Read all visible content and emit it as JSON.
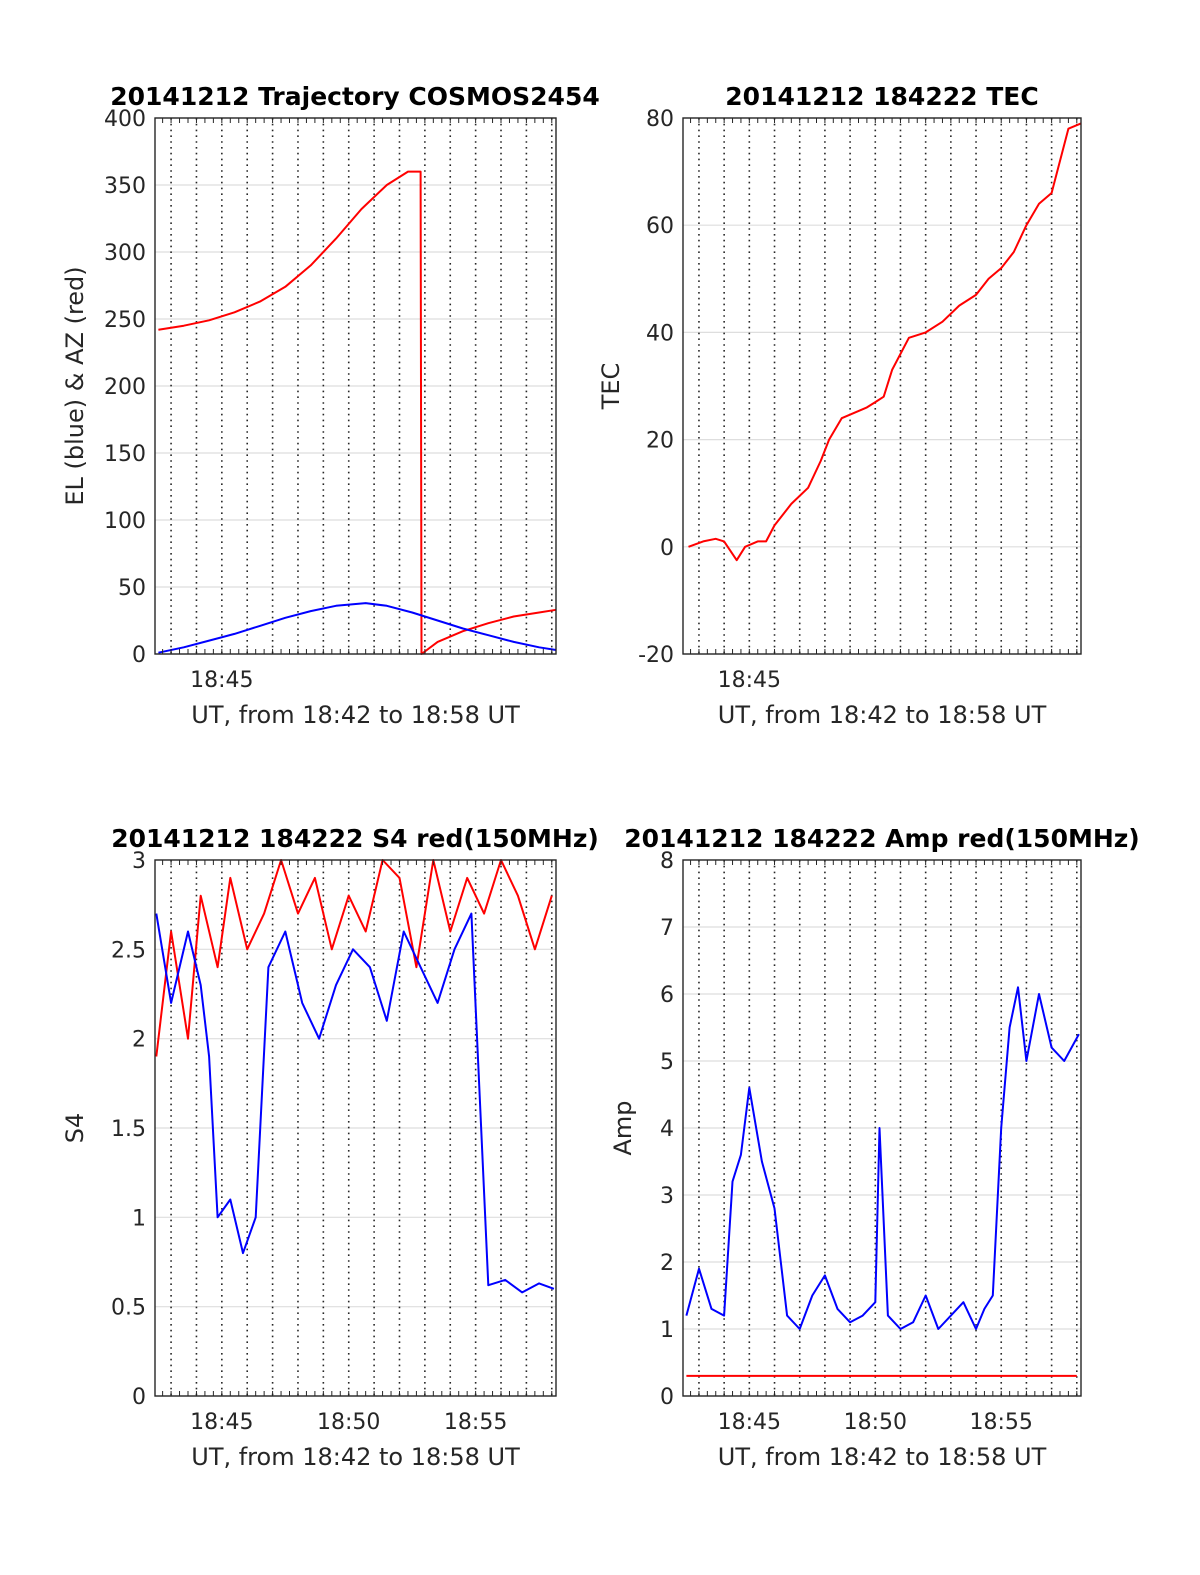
{
  "chart_data": [
    {
      "type": "line",
      "title": "20141212 Trajectory COSMOS2454",
      "xlabel": "UT, from 18:42 to 18:58 UT",
      "ylabel": "EL (blue) & AZ (red)",
      "xlim": [
        "18:42:22",
        "18:58:10"
      ],
      "ylim": [
        0,
        400
      ],
      "x_ticks": [
        "18:45"
      ],
      "y_ticks": [
        0,
        50,
        100,
        150,
        200,
        250,
        300,
        350,
        400
      ],
      "grid": "x minute lines dotted, y lines solid light",
      "series": [
        {
          "color": "#ff0000",
          "x": [
            "18:42:30",
            "18:43:30",
            "18:44:30",
            "18:45:30",
            "18:46:30",
            "18:47:30",
            "18:48:30",
            "18:49:30",
            "18:50:30",
            "18:51:30",
            "18:52:20",
            "18:52:50",
            "18:52:52",
            "18:53:30",
            "18:54:30",
            "18:55:30",
            "18:56:30",
            "18:57:30",
            "18:58:10"
          ],
          "values": [
            242,
            245,
            249,
            255,
            263,
            274,
            290,
            310,
            332,
            350,
            360,
            360,
            0,
            9,
            17,
            23,
            28,
            31,
            33
          ]
        },
        {
          "color": "#0000ff",
          "x": [
            "18:42:30",
            "18:43:30",
            "18:44:30",
            "18:45:30",
            "18:46:30",
            "18:47:30",
            "18:48:30",
            "18:49:30",
            "18:50:40",
            "18:51:30",
            "18:52:30",
            "18:53:30",
            "18:54:30",
            "18:55:30",
            "18:56:30",
            "18:57:30",
            "18:58:10"
          ],
          "values": [
            1,
            5,
            10,
            15,
            21,
            27,
            32,
            36,
            38,
            36,
            31,
            25,
            19,
            14,
            9,
            5,
            3
          ]
        }
      ]
    },
    {
      "type": "line",
      "title": "20141212 184222 TEC",
      "xlabel": "UT, from 18:42 to 18:58 UT",
      "ylabel": "TEC",
      "xlim": [
        "18:42:22",
        "18:58:10"
      ],
      "ylim": [
        -20,
        80
      ],
      "x_ticks": [
        "18:45"
      ],
      "y_ticks": [
        -20,
        0,
        20,
        40,
        60,
        80
      ],
      "grid": "x minute lines dotted, y lines solid light",
      "series": [
        {
          "color": "#ff0000",
          "x": [
            "18:42:35",
            "18:43:10",
            "18:43:40",
            "18:44:00",
            "18:44:30",
            "18:44:50",
            "18:45:20",
            "18:45:40",
            "18:46:00",
            "18:46:40",
            "18:47:20",
            "18:47:50",
            "18:48:10",
            "18:48:40",
            "18:49:10",
            "18:49:40",
            "18:50:00",
            "18:50:20",
            "18:50:40",
            "18:51:20",
            "18:52:00",
            "18:52:40",
            "18:53:20",
            "18:54:00",
            "18:54:30",
            "18:55:00",
            "18:55:30",
            "18:56:00",
            "18:56:30",
            "18:57:00",
            "18:57:20",
            "18:57:40",
            "18:58:10"
          ],
          "values": [
            0,
            1,
            1.5,
            1,
            -2.5,
            0,
            1,
            1,
            4,
            8,
            11,
            16,
            20,
            24,
            25,
            26,
            27,
            28,
            33,
            39,
            40,
            42,
            45,
            47,
            50,
            52,
            55,
            60,
            64,
            66,
            72,
            78,
            79
          ]
        }
      ]
    },
    {
      "type": "line",
      "title": "20141212 184222 S4 red(150MHz)",
      "xlabel": "UT, from 18:42 to 18:58 UT",
      "ylabel": "S4",
      "xlim": [
        "18:42:22",
        "18:58:10"
      ],
      "ylim": [
        0,
        3
      ],
      "x_ticks": [
        "18:45",
        "18:50",
        "18:55"
      ],
      "y_ticks": [
        0,
        0.5,
        1,
        1.5,
        2,
        2.5,
        3
      ],
      "grid": "x minute lines dotted, y lines solid light",
      "series": [
        {
          "color": "#ff0000",
          "x": [
            "18:42:25",
            "18:43:00",
            "18:43:40",
            "18:44:10",
            "18:44:50",
            "18:45:20",
            "18:46:00",
            "18:46:40",
            "18:47:20",
            "18:48:00",
            "18:48:40",
            "18:49:20",
            "18:50:00",
            "18:50:40",
            "18:51:20",
            "18:52:00",
            "18:52:40",
            "18:53:20",
            "18:54:00",
            "18:54:40",
            "18:55:20",
            "18:56:00",
            "18:56:40",
            "18:57:20",
            "18:58:00"
          ],
          "values": [
            1.9,
            2.6,
            2.0,
            2.8,
            2.4,
            2.9,
            2.5,
            2.7,
            3.0,
            2.7,
            2.9,
            2.5,
            2.8,
            2.6,
            3.0,
            2.9,
            2.4,
            3.0,
            2.6,
            2.9,
            2.7,
            3.0,
            2.8,
            2.5,
            2.8
          ]
        },
        {
          "color": "#0000ff",
          "x": [
            "18:42:25",
            "18:43:00",
            "18:43:40",
            "18:44:10",
            "18:44:30",
            "18:44:50",
            "18:45:20",
            "18:45:50",
            "18:46:20",
            "18:46:50",
            "18:47:30",
            "18:48:10",
            "18:48:50",
            "18:49:30",
            "18:50:10",
            "18:50:50",
            "18:51:30",
            "18:52:10",
            "18:52:50",
            "18:53:30",
            "18:54:10",
            "18:54:50",
            "18:55:30",
            "18:56:10",
            "18:56:50",
            "18:57:30",
            "18:58:05"
          ],
          "values": [
            2.7,
            2.2,
            2.6,
            2.3,
            1.9,
            1.0,
            1.1,
            0.8,
            1.0,
            2.4,
            2.6,
            2.2,
            2.0,
            2.3,
            2.5,
            2.4,
            2.1,
            2.6,
            2.4,
            2.2,
            2.5,
            2.7,
            0.62,
            0.65,
            0.58,
            0.63,
            0.6
          ]
        }
      ]
    },
    {
      "type": "line",
      "title": "20141212 184222 Amp red(150MHz)",
      "xlabel": "UT, from 18:42 to 18:58 UT",
      "ylabel": "Amp",
      "xlim": [
        "18:42:22",
        "18:58:10"
      ],
      "ylim": [
        0,
        8
      ],
      "x_ticks": [
        "18:45",
        "18:50",
        "18:55"
      ],
      "y_ticks": [
        0,
        1,
        2,
        3,
        4,
        5,
        6,
        7,
        8
      ],
      "grid": "x minute lines dotted, y lines solid light",
      "series": [
        {
          "color": "#ff0000",
          "x": [
            "18:42:30",
            "18:58:00"
          ],
          "values": [
            0.3,
            0.3
          ]
        },
        {
          "color": "#0000ff",
          "x": [
            "18:42:30",
            "18:43:00",
            "18:43:30",
            "18:44:00",
            "18:44:20",
            "18:44:40",
            "18:45:00",
            "18:45:30",
            "18:46:00",
            "18:46:30",
            "18:47:00",
            "18:47:30",
            "18:48:00",
            "18:48:30",
            "18:49:00",
            "18:49:30",
            "18:50:00",
            "18:50:10",
            "18:50:30",
            "18:51:00",
            "18:51:30",
            "18:52:00",
            "18:52:30",
            "18:53:00",
            "18:53:30",
            "18:54:00",
            "18:54:20",
            "18:54:40",
            "18:55:00",
            "18:55:20",
            "18:55:40",
            "18:56:00",
            "18:56:30",
            "18:57:00",
            "18:57:30",
            "18:58:05"
          ],
          "values": [
            1.2,
            1.9,
            1.3,
            1.2,
            3.2,
            3.6,
            4.6,
            3.5,
            2.8,
            1.2,
            1.0,
            1.5,
            1.8,
            1.3,
            1.1,
            1.2,
            1.4,
            4.0,
            1.2,
            1.0,
            1.1,
            1.5,
            1.0,
            1.2,
            1.4,
            1.0,
            1.3,
            1.5,
            4.0,
            5.5,
            6.1,
            5.0,
            6.0,
            5.2,
            5.0,
            5.4
          ]
        }
      ]
    }
  ]
}
